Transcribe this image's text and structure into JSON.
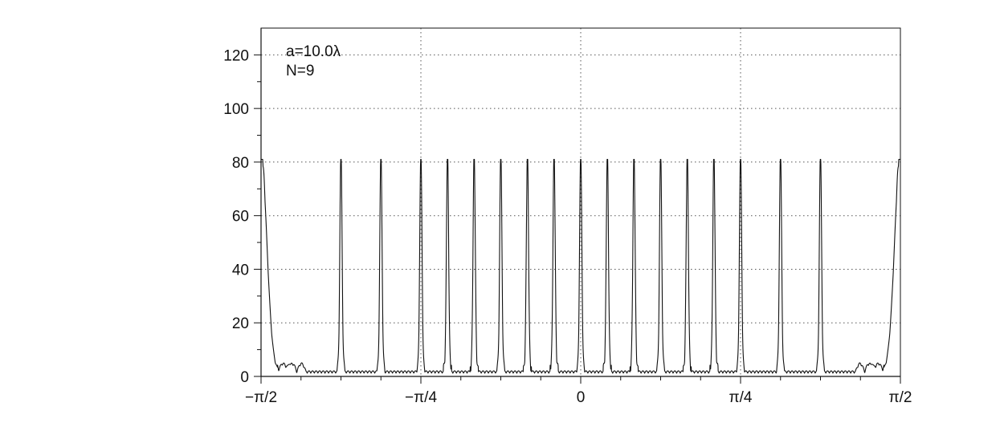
{
  "chart_data": {
    "type": "line",
    "xlabel": "",
    "ylabel": "",
    "xlim": [
      -1.5708,
      1.5708
    ],
    "ylim": [
      0,
      130
    ],
    "grid": true,
    "xticks": [
      {
        "value": -1.5708,
        "label": "−π/2"
      },
      {
        "value": -0.7854,
        "label": "−π/4"
      },
      {
        "value": 0,
        "label": "0"
      },
      {
        "value": 0.7854,
        "label": "π/4"
      },
      {
        "value": 1.5708,
        "label": "π/2"
      }
    ],
    "yticks": [
      {
        "value": 0,
        "label": "0"
      },
      {
        "value": 20,
        "label": "20"
      },
      {
        "value": 40,
        "label": "40"
      },
      {
        "value": 60,
        "label": "60"
      },
      {
        "value": 80,
        "label": "80"
      },
      {
        "value": 100,
        "label": "100"
      },
      {
        "value": 120,
        "label": "120"
      }
    ],
    "annotations": [
      {
        "text": "a=10.0λ"
      },
      {
        "text": "N=9"
      }
    ],
    "series": [
      {
        "peak_value": 81,
        "peak_positions": [
          -1.5708,
          -1.1781,
          -0.9817,
          -0.7854,
          -0.6545,
          -0.5236,
          -0.3927,
          -0.2618,
          -0.1309,
          0,
          0.1309,
          0.2618,
          0.3927,
          0.5236,
          0.6545,
          0.7854,
          0.9817,
          1.1781,
          1.5708
        ]
      }
    ]
  }
}
